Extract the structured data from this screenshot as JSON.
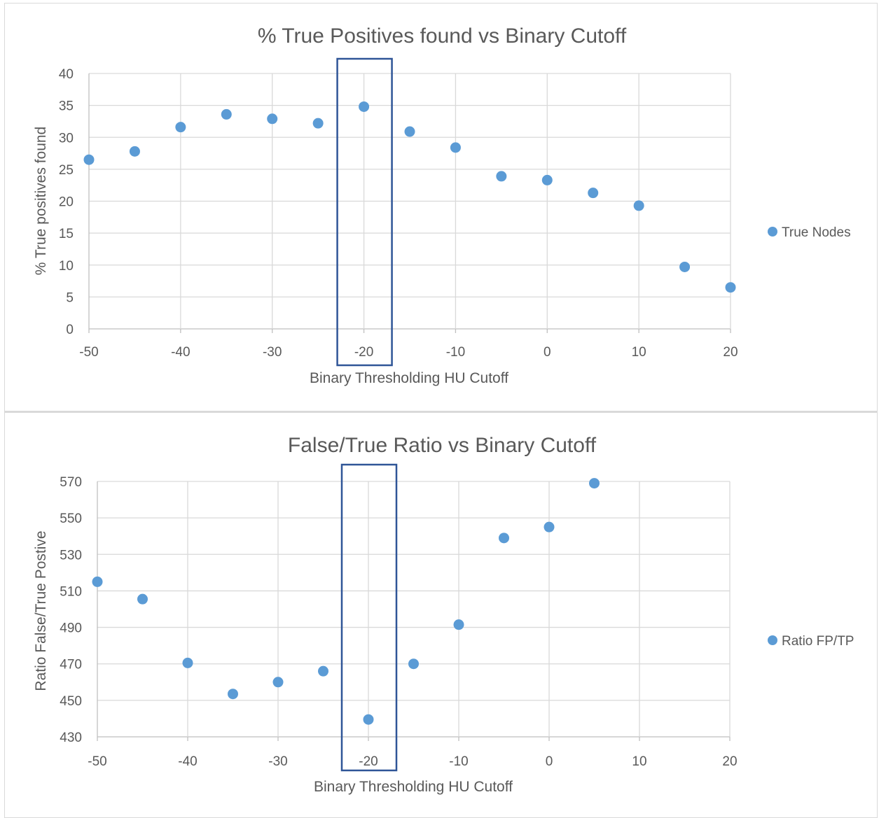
{
  "chart_data": [
    {
      "type": "scatter",
      "title": "% True Positives found vs Binary Cutoff",
      "xlabel": "Binary Thresholding HU Cutoff",
      "ylabel": "% True positives found",
      "xlim": [
        -50,
        20
      ],
      "ylim": [
        0,
        40
      ],
      "xticks": [
        "-50",
        "-40",
        "-30",
        "-20",
        "-10",
        "0",
        "10",
        "20"
      ],
      "yticks": [
        "0",
        "5",
        "10",
        "15",
        "20",
        "25",
        "30",
        "35",
        "40"
      ],
      "grid": true,
      "legend_position": "right",
      "highlight_x": -20,
      "series": [
        {
          "name": "True Nodes",
          "color": "#5b9bd5",
          "x": [
            -50,
            -45,
            -40,
            -35,
            -30,
            -25,
            -20,
            -15,
            -10,
            -5,
            0,
            5,
            10,
            15,
            20
          ],
          "y": [
            26.5,
            27.8,
            31.6,
            33.6,
            32.9,
            32.2,
            34.8,
            30.9,
            28.4,
            23.9,
            23.3,
            21.3,
            19.3,
            9.7,
            6.5
          ]
        }
      ]
    },
    {
      "type": "scatter",
      "title": "False/True Ratio vs Binary Cutoff",
      "xlabel": "Binary Thresholding HU Cutoff",
      "ylabel": "Ratio False/True Postive",
      "xlim": [
        -50,
        20
      ],
      "ylim": [
        430,
        570
      ],
      "xticks": [
        "-50",
        "-40",
        "-30",
        "-20",
        "-10",
        "0",
        "10",
        "20"
      ],
      "yticks": [
        "430",
        "450",
        "470",
        "490",
        "510",
        "530",
        "550",
        "570"
      ],
      "grid": true,
      "legend_position": "right",
      "highlight_x": -20,
      "series": [
        {
          "name": "Ratio FP/TP",
          "color": "#5b9bd5",
          "x": [
            -50,
            -45,
            -40,
            -35,
            -30,
            -25,
            -20,
            -15,
            -10,
            -5,
            0,
            5
          ],
          "y": [
            515,
            505.5,
            470.5,
            453.5,
            460,
            466,
            439.5,
            470,
            491.5,
            539,
            545,
            569
          ]
        }
      ]
    }
  ]
}
